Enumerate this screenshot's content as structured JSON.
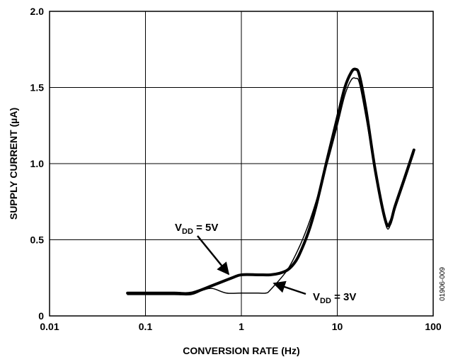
{
  "chart_data": {
    "type": "line",
    "xlabel": "CONVERSION RATE (Hz)",
    "ylabel": "SUPPLY CURRENT (µA)",
    "x_scale": "log",
    "xlim": [
      0.01,
      100
    ],
    "ylim": [
      0,
      2.0
    ],
    "x_ticks": [
      "0.01",
      "0.1",
      "1",
      "10",
      "100"
    ],
    "y_ticks": [
      "0",
      "0.5",
      "1.0",
      "1.5",
      "2.0"
    ],
    "grid": true,
    "figure_id": "01906-009",
    "series": [
      {
        "name": "VDD = 5V",
        "label_main": "V",
        "label_sub": "DD",
        "label_rest": " = 5V",
        "line": "thick",
        "x": [
          0.065,
          0.1,
          0.2,
          0.3,
          0.5,
          0.8,
          1.0,
          1.5,
          2.0,
          2.5,
          3.0,
          3.5,
          4.0,
          5.0,
          6.0,
          8.0,
          10.0,
          12.0,
          14.0,
          15.5,
          17.0,
          20.0,
          25.0,
          32.0,
          36.0,
          40.0,
          50.0,
          63.0
        ],
        "y": [
          0.15,
          0.15,
          0.15,
          0.15,
          0.2,
          0.25,
          0.27,
          0.27,
          0.27,
          0.28,
          0.3,
          0.34,
          0.4,
          0.55,
          0.72,
          1.05,
          1.3,
          1.5,
          1.6,
          1.62,
          1.58,
          1.35,
          0.95,
          0.62,
          0.62,
          0.72,
          0.9,
          1.09
        ]
      },
      {
        "name": "VDD = 3V",
        "label_main": "V",
        "label_sub": "DD",
        "label_rest": " = 3V",
        "line": "thin",
        "x": [
          0.065,
          0.1,
          0.2,
          0.3,
          0.4,
          0.5,
          0.7,
          1.0,
          1.5,
          1.8,
          2.0,
          3.0,
          4.0,
          5.0,
          6.0,
          8.0,
          10.0,
          12.0,
          14.0,
          15.5,
          17.0,
          20.0,
          25.0,
          32.0,
          36.0,
          40.0,
          50.0,
          63.0
        ],
        "y": [
          0.14,
          0.14,
          0.14,
          0.14,
          0.17,
          0.18,
          0.15,
          0.15,
          0.15,
          0.15,
          0.17,
          0.3,
          0.45,
          0.6,
          0.75,
          1.02,
          1.25,
          1.45,
          1.55,
          1.56,
          1.53,
          1.3,
          0.95,
          0.6,
          0.6,
          0.7,
          0.88,
          1.07
        ]
      }
    ]
  }
}
